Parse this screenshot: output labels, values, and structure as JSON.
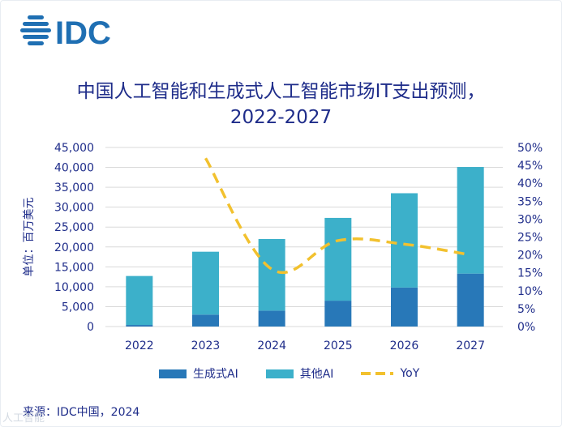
{
  "brand": {
    "logo_text": "IDC"
  },
  "header": {
    "title_line1": "中国人工智能和生成式人工智能市场IT支出预测，",
    "title_line2": "2022-2027"
  },
  "colors": {
    "genai": "#2878b8",
    "otherai": "#3cb0ca",
    "yoy": "#f2c12e",
    "text": "#1f2d8a",
    "logo": "#1f6fb3"
  },
  "chart_data": {
    "type": "bar",
    "stacked": true,
    "categories": [
      "2022",
      "2023",
      "2024",
      "2025",
      "2026",
      "2027"
    ],
    "series": [
      {
        "name": "生成式AI",
        "type": "bar",
        "axis": "left",
        "values": [
          400,
          3000,
          4000,
          6500,
          9800,
          13300
        ]
      },
      {
        "name": "其他AI",
        "type": "bar",
        "axis": "left",
        "values": [
          12300,
          15800,
          18000,
          20800,
          23700,
          26800
        ]
      },
      {
        "name": "YoY",
        "type": "line",
        "axis": "right",
        "style": "dashed",
        "values": [
          null,
          0.47,
          0.16,
          0.24,
          0.23,
          0.2
        ]
      }
    ],
    "ylabel": "单位：百万美元",
    "ylim": [
      0,
      45000
    ],
    "yticks": [
      "0",
      "5,000",
      "10,000",
      "15,000",
      "20,000",
      "25,000",
      "30,000",
      "35,000",
      "40,000",
      "45,000"
    ],
    "y2lim": [
      0,
      0.5
    ],
    "y2ticks": [
      "0%",
      "5%",
      "10%",
      "15%",
      "20%",
      "25%",
      "30%",
      "35%",
      "40%",
      "45%",
      "50%"
    ],
    "grid": true,
    "legend_position": "bottom"
  },
  "footer": {
    "source": "来源：IDC中国，2024",
    "watermark": "人工智能"
  }
}
